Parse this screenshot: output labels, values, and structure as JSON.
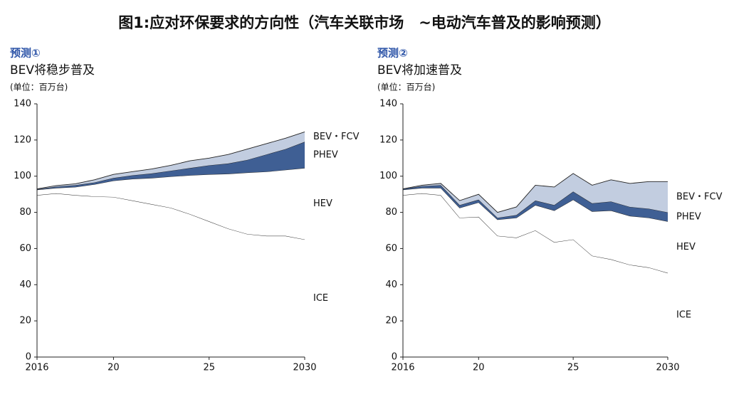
{
  "title": "图1:应对环保要求的方向性（汽车关联市场　~电动汽车普及的影响预测）",
  "chart_data": [
    {
      "type": "area",
      "subtitle": "预测①",
      "title": "BEV将稳步普及",
      "y_label": "(单位：百万台)",
      "x": [
        2016,
        2017,
        2018,
        2019,
        2020,
        2021,
        2022,
        2023,
        2024,
        2025,
        2026,
        2027,
        2028,
        2029,
        2030
      ],
      "xlim": [
        2016,
        2030
      ],
      "xticks": [
        2016,
        {
          "value": 2020,
          "label": "20"
        },
        {
          "value": 2025,
          "label": "25"
        },
        2030
      ],
      "ylim": [
        0,
        140
      ],
      "yticks": [
        0,
        20,
        40,
        60,
        80,
        100,
        120,
        140
      ],
      "series": [
        {
          "name": "ICE",
          "color": "#ffffff",
          "values": [
            89.5,
            90.5,
            89.5,
            88.8,
            88.5,
            86.5,
            84.5,
            82.5,
            79,
            75,
            71,
            68,
            67,
            67,
            65
          ]
        },
        {
          "name": "HEV",
          "color": "#ffffff",
          "values": [
            3,
            3,
            4.5,
            6.7,
            9,
            12,
            14.5,
            17.3,
            21.5,
            26,
            30.3,
            34,
            35.5,
            36.5,
            39.5
          ]
        },
        {
          "name": "PHEV",
          "color": "#3f5f94",
          "values": [
            0.3,
            0.7,
            1,
            1,
            1.5,
            2,
            2.5,
            3.2,
            4,
            5,
            5.7,
            7,
            9.5,
            11.5,
            14.5
          ]
        },
        {
          "name": "BEV・FCV",
          "color": "#c2cde0",
          "values": [
            0.2,
            0.6,
            0.8,
            1.5,
            2,
            2,
            2.5,
            3,
            4,
            4,
            5,
            6,
            6,
            6,
            5.5
          ]
        }
      ]
    },
    {
      "type": "area",
      "subtitle": "预测②",
      "title": "BEV将加速普及",
      "y_label": "(单位：百万台)",
      "x": [
        2016,
        2017,
        2018,
        2019,
        2020,
        2021,
        2022,
        2023,
        2024,
        2025,
        2026,
        2027,
        2028,
        2029,
        2030
      ],
      "xlim": [
        2016,
        2030
      ],
      "xticks": [
        2016,
        {
          "value": 2020,
          "label": "20"
        },
        {
          "value": 2025,
          "label": "25"
        },
        2030
      ],
      "ylim": [
        0,
        140
      ],
      "yticks": [
        0,
        20,
        40,
        60,
        80,
        100,
        120,
        140
      ],
      "series": [
        {
          "name": "ICE",
          "color": "#ffffff",
          "values": [
            89.5,
            90.5,
            89.5,
            77,
            77.5,
            67,
            66,
            70,
            63.5,
            65,
            56,
            54,
            51,
            49.5,
            46.5
          ]
        },
        {
          "name": "HEV",
          "color": "#ffffff",
          "values": [
            3,
            3,
            4,
            5.5,
            8,
            9,
            11,
            14,
            17.5,
            22,
            24.5,
            27,
            27,
            27.5,
            28.5
          ]
        },
        {
          "name": "PHEV",
          "color": "#3f5f94",
          "values": [
            0.5,
            1,
            1.5,
            1.5,
            1.5,
            1,
            1.5,
            2.5,
            3,
            4.5,
            4.5,
            5,
            5,
            5,
            5
          ]
        },
        {
          "name": "BEV・FCV",
          "color": "#c2cde0",
          "values": [
            0,
            0.5,
            1,
            2.5,
            3,
            3,
            4.5,
            8.5,
            10,
            10,
            10,
            12,
            13,
            15,
            17
          ]
        }
      ]
    }
  ]
}
